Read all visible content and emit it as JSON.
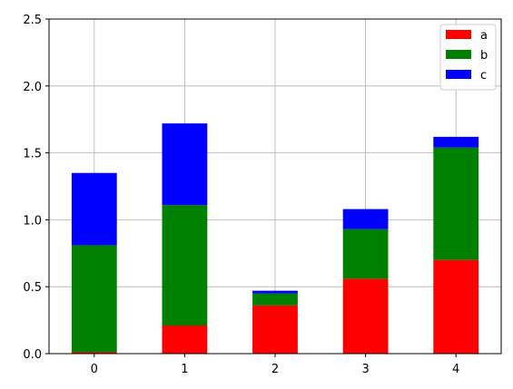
{
  "chart_data": {
    "type": "bar",
    "stacked": true,
    "categories": [
      "0",
      "1",
      "2",
      "3",
      "4"
    ],
    "series": [
      {
        "name": "a",
        "color": "#ff0000",
        "values": [
          0.01,
          0.21,
          0.36,
          0.56,
          0.7
        ]
      },
      {
        "name": "b",
        "color": "#008000",
        "values": [
          0.8,
          0.9,
          0.09,
          0.37,
          0.84
        ]
      },
      {
        "name": "c",
        "color": "#0000ff",
        "values": [
          0.54,
          0.61,
          0.02,
          0.15,
          0.08
        ]
      }
    ],
    "ylim": [
      0,
      2.5
    ],
    "yticks": [
      "0.0",
      "0.5",
      "1.0",
      "1.5",
      "2.0",
      "2.5"
    ],
    "grid": true,
    "legend": "top-right",
    "title": "",
    "xlabel": "",
    "ylabel": ""
  }
}
